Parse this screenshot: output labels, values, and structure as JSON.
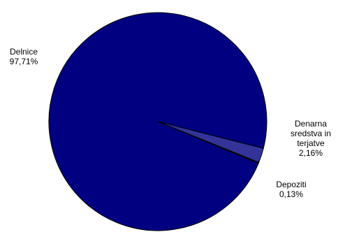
{
  "chart_data": {
    "type": "pie",
    "slices": [
      {
        "label_lines": [
          "Delnice"
        ],
        "value_label": "97,71%",
        "value": 97.71,
        "color": "#000080"
      },
      {
        "label_lines": [
          "Denarna",
          "sredstva in",
          "terjatve"
        ],
        "value_label": "2,16%",
        "value": 2.16,
        "color": "#333399"
      },
      {
        "label_lines": [
          "Depoziti"
        ],
        "value_label": "0,13%",
        "value": 0.13,
        "color": "#000080"
      }
    ],
    "legend": "none",
    "slice_edge_color": "#000000"
  }
}
